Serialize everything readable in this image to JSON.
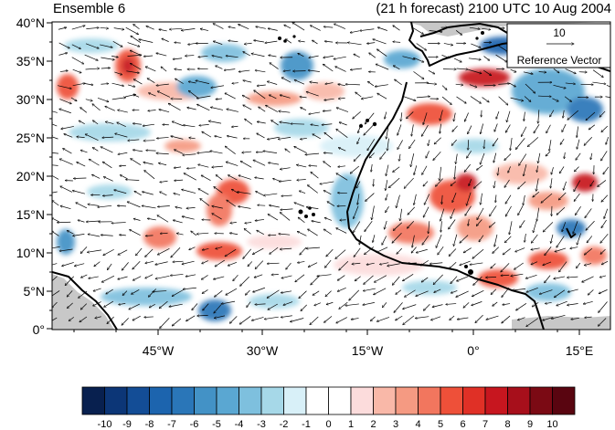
{
  "title_left": "Ensemble 6",
  "title_right": "(21 h forecast) 2100 UTC 10 Aug 2004",
  "lat_labels": [
    "40°N",
    "35°N",
    "30°N",
    "25°N",
    "20°N",
    "15°N",
    "10°N",
    "5°N",
    "0°"
  ],
  "lon_labels": [
    "45°W",
    "30°W",
    "15°W",
    "0°",
    "15°E"
  ],
  "map_extent": {
    "lon_min": -57,
    "lon_max": 19,
    "lat_min": 0,
    "lat_max": 40
  },
  "reference_vector": {
    "value": "10",
    "label": "Reference Vector"
  },
  "colorbar": {
    "labels": [
      "-10",
      "-9",
      "-8",
      "-7",
      "-6",
      "-5",
      "-4",
      "-3",
      "-2",
      "-1",
      "0",
      "1",
      "2",
      "3",
      "4",
      "5",
      "6",
      "7",
      "8",
      "9",
      "10"
    ],
    "colors": [
      "#08204f",
      "#0c3677",
      "#134d96",
      "#1c64ae",
      "#2a76b8",
      "#4392c6",
      "#5aa7d2",
      "#7ec0de",
      "#a6d8e8",
      "#d8f0f8",
      "#ffffff",
      "#ffffff",
      "#fcdcdc",
      "#f9b8a8",
      "#f59a82",
      "#f2765e",
      "#ee5039",
      "#e03026",
      "#c7161f",
      "#a70f1b",
      "#7b0a14",
      "#590510"
    ]
  },
  "colors": {
    "land": "#c8c8c8",
    "coast": "#000000",
    "vector": "#000000"
  }
}
